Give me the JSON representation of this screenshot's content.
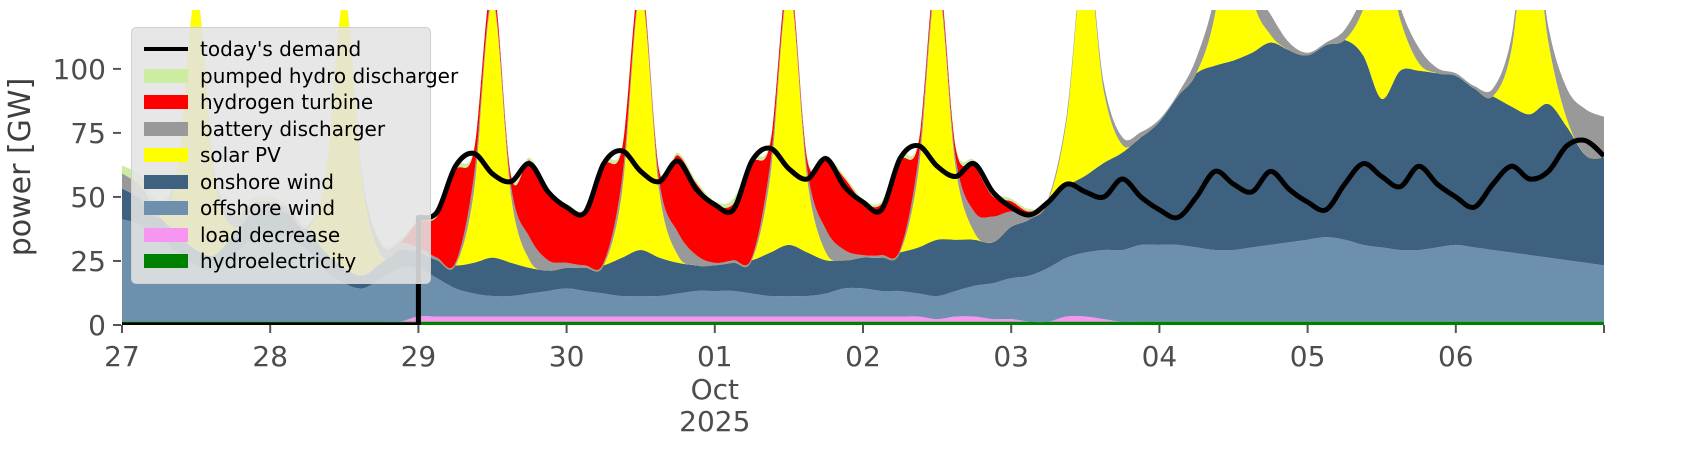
{
  "chart_data": {
    "type": "area",
    "title": "",
    "ylabel": "power [GW]",
    "xlabel_month": "Oct",
    "xlabel_year": "2025",
    "ylim": [
      0,
      123
    ],
    "yticks": [
      0,
      25,
      50,
      75,
      100
    ],
    "xticks": [
      {
        "t": 0,
        "label": "27"
      },
      {
        "t": 24,
        "label": "28"
      },
      {
        "t": 48,
        "label": "29"
      },
      {
        "t": 72,
        "label": "30"
      },
      {
        "t": 96,
        "label": "01"
      },
      {
        "t": 120,
        "label": "02"
      },
      {
        "t": 144,
        "label": "03"
      },
      {
        "t": 168,
        "label": "04"
      },
      {
        "t": 192,
        "label": "05"
      },
      {
        "t": 216,
        "label": "06"
      },
      {
        "t": 240,
        "label": ""
      }
    ],
    "x": {
      "start_hours": 0,
      "step_hours": 3,
      "count": 81,
      "t_max": 240
    },
    "grid": false,
    "legend_position": "upper-left",
    "stack_order": [
      "hydroelectricity",
      "load_decrease",
      "offshore_wind",
      "onshore_wind",
      "solar_pv",
      "battery_discharger",
      "hydrogen_turbine",
      "pumped_hydro_discharger"
    ],
    "series": {
      "hydroelectricity": {
        "label": "hydroelectricity",
        "color": "#008000",
        "values": [
          1.3,
          1.3,
          1.3,
          1.3,
          1.3,
          1.3,
          1.3,
          1.3,
          1.3,
          1.3,
          1.3,
          1.3,
          1.3,
          1.3,
          1.3,
          1.3,
          1.3,
          1.3,
          1.3,
          1.3,
          1.3,
          1.3,
          1.3,
          1.3,
          1.3,
          1.3,
          1.3,
          1.3,
          1.3,
          1.3,
          1.3,
          1.3,
          1.3,
          1.3,
          1.3,
          1.3,
          1.3,
          1.3,
          1.3,
          1.3,
          1.3,
          1.3,
          1.3,
          1.3,
          1.3,
          1.3,
          1.3,
          1.3,
          1.3,
          1.3,
          1.3,
          1.3,
          1.3,
          1.3,
          1.3,
          1.3,
          1.3,
          1.3,
          1.3,
          1.3,
          1.3,
          1.3,
          1.3,
          1.3,
          1.3,
          1.3,
          1.3,
          1.3,
          1.3,
          1.3,
          1.3,
          1.3,
          1.3,
          1.3,
          1.3,
          1.3,
          1.3,
          1.3,
          1.3,
          1.3,
          1.3
        ]
      },
      "load_decrease": {
        "label": "load decrease",
        "color": "#f796f0",
        "values": [
          0,
          0,
          0,
          0,
          0,
          0,
          0,
          0,
          0,
          0,
          0,
          0,
          0,
          0,
          0,
          0,
          2,
          2,
          2,
          2,
          2,
          2,
          2,
          2,
          2,
          2,
          2,
          2,
          2,
          2,
          2,
          2,
          2,
          2,
          2,
          2,
          2,
          2,
          2,
          2,
          2,
          2,
          2,
          2,
          1,
          2,
          2,
          1,
          1,
          0,
          0,
          2,
          2,
          1,
          0,
          0,
          0,
          0,
          0,
          0,
          0,
          0,
          0,
          0,
          0,
          0,
          0,
          0,
          0,
          0,
          0,
          0,
          0,
          0,
          0,
          0,
          0,
          0,
          0,
          0,
          0
        ]
      },
      "offshore_wind": {
        "label": "offshore wind",
        "color": "#6d90ad",
        "values": [
          40,
          38,
          33,
          27,
          22,
          20,
          26,
          32,
          34,
          33,
          28,
          20,
          15,
          13,
          17,
          21,
          19,
          15,
          11,
          9,
          8,
          8,
          9,
          10,
          11,
          10,
          9,
          8,
          8,
          8,
          9,
          10,
          10,
          10,
          9,
          8,
          8,
          8,
          9,
          11,
          11,
          10,
          10,
          9,
          9,
          10,
          12,
          14,
          16,
          18,
          21,
          23,
          25,
          27,
          28,
          30,
          30,
          30,
          29,
          28,
          28,
          29,
          30,
          31,
          32,
          33,
          32,
          30,
          29,
          28,
          28,
          29,
          30,
          29,
          28,
          27,
          26,
          25,
          24,
          23,
          22
        ]
      },
      "onshore_wind": {
        "label": "onshore wind",
        "color": "#3d617f",
        "values": [
          12,
          10,
          8,
          7,
          6,
          6,
          8,
          10,
          10,
          9,
          8,
          7,
          6,
          5,
          6,
          7,
          6,
          7,
          9,
          12,
          15,
          13,
          10,
          8,
          8,
          9,
          11,
          15,
          18,
          15,
          12,
          10,
          10,
          11,
          13,
          17,
          20,
          17,
          13,
          11,
          12,
          13,
          15,
          18,
          22,
          20,
          18,
          16,
          20,
          22,
          26,
          28,
          30,
          34,
          38,
          42,
          48,
          58,
          68,
          72,
          74,
          76,
          79,
          75,
          72,
          75,
          78,
          74,
          58,
          70,
          70,
          68,
          66,
          62,
          60,
          57,
          55,
          60,
          52,
          42,
          42
        ]
      },
      "solar_pv": {
        "label": "solar PV",
        "color": "#ffff00",
        "values": [
          0,
          0,
          0,
          25,
          100,
          30,
          3,
          0,
          0,
          0,
          0,
          30,
          105,
          35,
          3,
          0,
          0,
          0,
          0,
          28,
          100,
          26,
          3,
          0,
          0,
          0,
          0,
          26,
          100,
          26,
          3,
          0,
          0,
          0,
          0,
          30,
          100,
          28,
          3,
          0,
          0,
          0,
          0,
          30,
          100,
          28,
          3,
          0,
          0,
          0,
          0,
          26,
          88,
          28,
          3,
          0,
          0,
          0,
          0,
          20,
          70,
          22,
          3,
          0,
          0,
          0,
          0,
          18,
          62,
          20,
          3,
          0,
          0,
          0,
          0,
          22,
          80,
          24,
          3,
          0,
          0
        ]
      },
      "battery_discharger": {
        "label": "battery discharger",
        "color": "#999999",
        "values": [
          6,
          5,
          3,
          1,
          0,
          2,
          5,
          4,
          3,
          2,
          1,
          0,
          0,
          2,
          4,
          3,
          2,
          1,
          1,
          6,
          2,
          4,
          9,
          4,
          2,
          1,
          1,
          5,
          2,
          4,
          9,
          4,
          1,
          1,
          1,
          5,
          2,
          4,
          9,
          4,
          1,
          1,
          1,
          5,
          3,
          4,
          8,
          10,
          6,
          1,
          1,
          2,
          2,
          3,
          3,
          2,
          1,
          1,
          6,
          8,
          4,
          6,
          8,
          3,
          1,
          1,
          4,
          6,
          3,
          5,
          6,
          2,
          1,
          1,
          3,
          5,
          3,
          6,
          12,
          18,
          16
        ]
      },
      "hydrogen_turbine": {
        "label": "hydrogen turbine",
        "color": "#ff0000",
        "values": [
          0,
          0,
          0,
          0,
          0,
          0,
          0,
          0,
          0,
          0,
          0,
          0,
          0,
          0,
          0,
          0,
          10,
          16,
          36,
          10,
          5,
          4,
          30,
          26,
          22,
          20,
          38,
          12,
          4,
          4,
          30,
          28,
          23,
          22,
          37,
          8,
          4,
          4,
          28,
          28,
          21,
          20,
          35,
          6,
          4,
          4,
          18,
          8,
          4,
          2,
          0,
          0,
          0,
          0,
          0,
          0,
          0,
          0,
          0,
          0,
          0,
          0,
          0,
          0,
          0,
          0,
          0,
          0,
          0,
          0,
          0,
          0,
          0,
          0,
          0,
          0,
          0,
          0,
          0,
          0,
          0
        ]
      },
      "pumped_hydro_discharger": {
        "label": "pumped hydro discharger",
        "color": "#cceda0",
        "values": [
          3,
          4,
          3,
          1,
          0,
          1,
          2,
          2,
          2,
          1,
          1,
          0,
          0,
          1,
          1,
          1,
          1,
          2,
          2,
          1,
          0,
          1,
          1,
          1,
          1,
          2,
          2,
          1,
          0,
          1,
          1,
          1,
          1,
          2,
          2,
          1,
          0,
          1,
          1,
          1,
          1,
          1,
          2,
          1,
          0,
          1,
          2,
          2,
          1,
          1,
          0,
          0,
          0,
          0,
          0,
          0,
          0,
          0,
          0,
          0,
          0,
          0,
          0,
          0,
          0,
          0,
          0,
          0,
          0,
          0,
          0,
          0,
          0,
          0,
          0,
          0,
          0,
          0,
          0,
          0,
          0
        ]
      }
    },
    "demand": {
      "label": "today's demand",
      "color": "#000000",
      "points": [
        [
          0,
          0
        ],
        [
          48,
          0
        ],
        [
          48,
          42
        ],
        [
          51,
          44
        ],
        [
          54,
          62
        ],
        [
          57,
          67
        ],
        [
          60,
          59
        ],
        [
          63,
          56
        ],
        [
          66,
          63
        ],
        [
          69,
          52
        ],
        [
          72,
          46
        ],
        [
          75,
          44
        ],
        [
          78,
          63
        ],
        [
          81,
          68
        ],
        [
          84,
          60
        ],
        [
          87,
          56
        ],
        [
          90,
          64
        ],
        [
          93,
          53
        ],
        [
          96,
          47
        ],
        [
          99,
          45
        ],
        [
          102,
          64
        ],
        [
          105,
          69
        ],
        [
          108,
          61
        ],
        [
          111,
          57
        ],
        [
          114,
          65
        ],
        [
          117,
          54
        ],
        [
          120,
          48
        ],
        [
          123,
          45
        ],
        [
          126,
          65
        ],
        [
          129,
          70
        ],
        [
          132,
          62
        ],
        [
          135,
          58
        ],
        [
          138,
          63
        ],
        [
          141,
          52
        ],
        [
          144,
          46
        ],
        [
          147,
          43
        ],
        [
          150,
          48
        ],
        [
          153,
          55
        ],
        [
          156,
          52
        ],
        [
          159,
          50
        ],
        [
          162,
          57
        ],
        [
          165,
          50
        ],
        [
          168,
          45
        ],
        [
          171,
          42
        ],
        [
          174,
          50
        ],
        [
          177,
          60
        ],
        [
          180,
          55
        ],
        [
          183,
          52
        ],
        [
          186,
          60
        ],
        [
          189,
          53
        ],
        [
          192,
          48
        ],
        [
          195,
          45
        ],
        [
          198,
          55
        ],
        [
          201,
          63
        ],
        [
          204,
          58
        ],
        [
          207,
          54
        ],
        [
          210,
          62
        ],
        [
          213,
          55
        ],
        [
          216,
          50
        ],
        [
          219,
          46
        ],
        [
          222,
          55
        ],
        [
          225,
          62
        ],
        [
          228,
          57
        ],
        [
          231,
          60
        ],
        [
          234,
          70
        ],
        [
          237,
          72
        ],
        [
          240,
          66
        ]
      ]
    }
  },
  "legend": {
    "items": [
      {
        "label": "today's demand",
        "color": "#000000",
        "swatch": "line"
      },
      {
        "label": "pumped hydro discharger",
        "color": "#cceda0",
        "swatch": "patch"
      },
      {
        "label": "hydrogen turbine",
        "color": "#ff0000",
        "swatch": "patch"
      },
      {
        "label": "battery discharger",
        "color": "#999999",
        "swatch": "patch"
      },
      {
        "label": "solar PV",
        "color": "#ffff00",
        "swatch": "patch"
      },
      {
        "label": "onshore wind",
        "color": "#3d617f",
        "swatch": "patch"
      },
      {
        "label": "offshore wind",
        "color": "#6d90ad",
        "swatch": "patch"
      },
      {
        "label": "load decrease",
        "color": "#f796f0",
        "swatch": "patch"
      },
      {
        "label": "hydroelectricity",
        "color": "#008000",
        "swatch": "patch"
      }
    ]
  }
}
